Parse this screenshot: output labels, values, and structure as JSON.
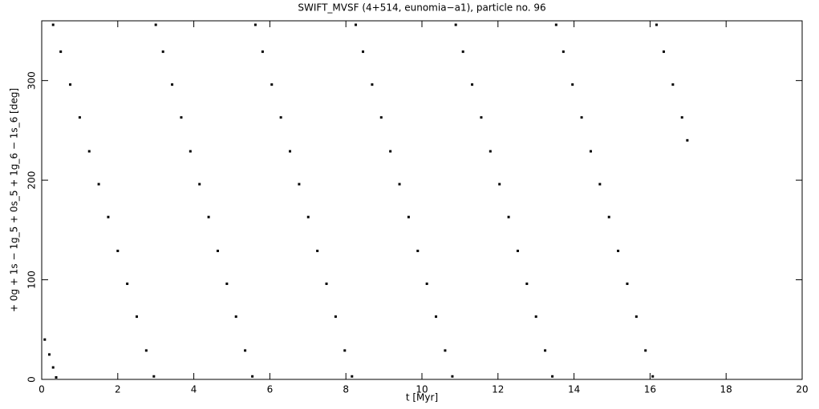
{
  "chart_data": {
    "type": "scatter",
    "title": "SWIFT_MVSF (4+514, eunomia−a1), particle no. 96",
    "x_label": "t [Myr]",
    "y_label": "+ 0g + 1s − 1g_5 + 0s_5 + 1g_6 − 1s_6 [deg]",
    "xlim": [
      0,
      20
    ],
    "xticks": [
      0,
      2,
      4,
      6,
      8,
      10,
      12,
      14,
      16,
      18,
      20
    ],
    "ylim": [
      0,
      360
    ],
    "yticks": [
      0,
      100,
      200,
      300
    ],
    "series": [
      {
        "color": "#000000",
        "x": [
          0.08,
          0.2,
          0.3,
          0.38,
          0.3,
          0.5,
          0.75,
          1.0,
          1.25,
          1.5,
          1.75,
          2.0,
          2.25,
          2.5,
          2.75,
          2.95,
          3.0,
          3.19,
          3.43,
          3.67,
          3.91,
          4.15,
          4.39,
          4.63,
          4.87,
          5.11,
          5.35,
          5.54,
          5.62,
          5.81,
          6.05,
          6.29,
          6.53,
          6.77,
          7.01,
          7.25,
          7.49,
          7.73,
          7.97,
          8.16,
          8.26,
          8.45,
          8.69,
          8.93,
          9.17,
          9.41,
          9.65,
          9.89,
          10.13,
          10.37,
          10.61,
          10.8,
          10.89,
          11.08,
          11.32,
          11.56,
          11.8,
          12.04,
          12.28,
          12.52,
          12.76,
          13.0,
          13.24,
          13.43,
          13.53,
          13.72,
          13.96,
          14.2,
          14.44,
          14.68,
          14.92,
          15.16,
          15.4,
          15.64,
          15.88,
          16.07,
          16.17,
          16.36,
          16.6,
          16.84,
          16.98
        ],
        "values": [
          40,
          25,
          12,
          2,
          356,
          329,
          296,
          263,
          229,
          196,
          163,
          129,
          96,
          63,
          29,
          3,
          356,
          329,
          296,
          263,
          229,
          196,
          163,
          129,
          96,
          63,
          29,
          3,
          356,
          329,
          296,
          263,
          229,
          196,
          163,
          129,
          96,
          63,
          29,
          3,
          356,
          329,
          296,
          263,
          229,
          196,
          163,
          129,
          96,
          63,
          29,
          3,
          356,
          329,
          296,
          263,
          229,
          196,
          163,
          129,
          96,
          63,
          29,
          3,
          356,
          329,
          296,
          263,
          229,
          196,
          163,
          129,
          96,
          63,
          29,
          3,
          356,
          329,
          296,
          263,
          240
        ]
      }
    ]
  }
}
